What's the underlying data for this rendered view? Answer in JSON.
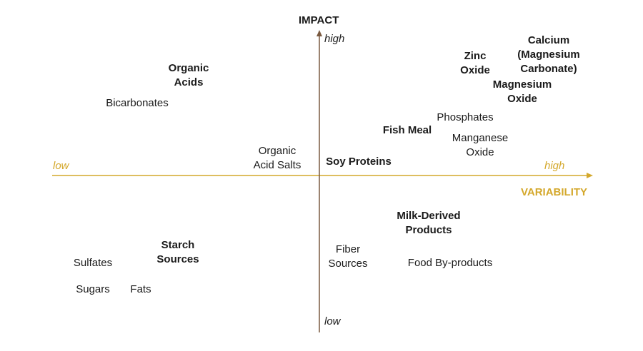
{
  "axes": {
    "y_title": "IMPACT",
    "x_title": "VARIABILITY",
    "y_high": "high",
    "y_low": "low",
    "x_low": "low",
    "x_high": "high",
    "x_color": "#d4a82c",
    "y_color": "#7a5a40"
  },
  "items": [
    {
      "text": "Organic\nAcids",
      "bold": true
    },
    {
      "text": "Bicarbonates",
      "bold": false
    },
    {
      "text": "Organic\nAcid Salts",
      "bold": false
    },
    {
      "text": "Soy Proteins",
      "bold": true
    },
    {
      "text": "Zinc\nOxide",
      "bold": true
    },
    {
      "text": "Calcium\n(Magnesium\nCarbonate)",
      "bold": true
    },
    {
      "text": "Magnesium\nOxide",
      "bold": true
    },
    {
      "text": "Phosphates",
      "bold": false
    },
    {
      "text": "Fish Meal",
      "bold": true
    },
    {
      "text": "Manganese\nOxide",
      "bold": false
    },
    {
      "text": "Milk-Derived\nProducts",
      "bold": true
    },
    {
      "text": "Fiber\nSources",
      "bold": false
    },
    {
      "text": "Food By-products",
      "bold": false
    },
    {
      "text": "Starch\nSources",
      "bold": true
    },
    {
      "text": "Sulfates",
      "bold": false
    },
    {
      "text": "Sugars",
      "bold": false
    },
    {
      "text": "Fats",
      "bold": false
    }
  ]
}
